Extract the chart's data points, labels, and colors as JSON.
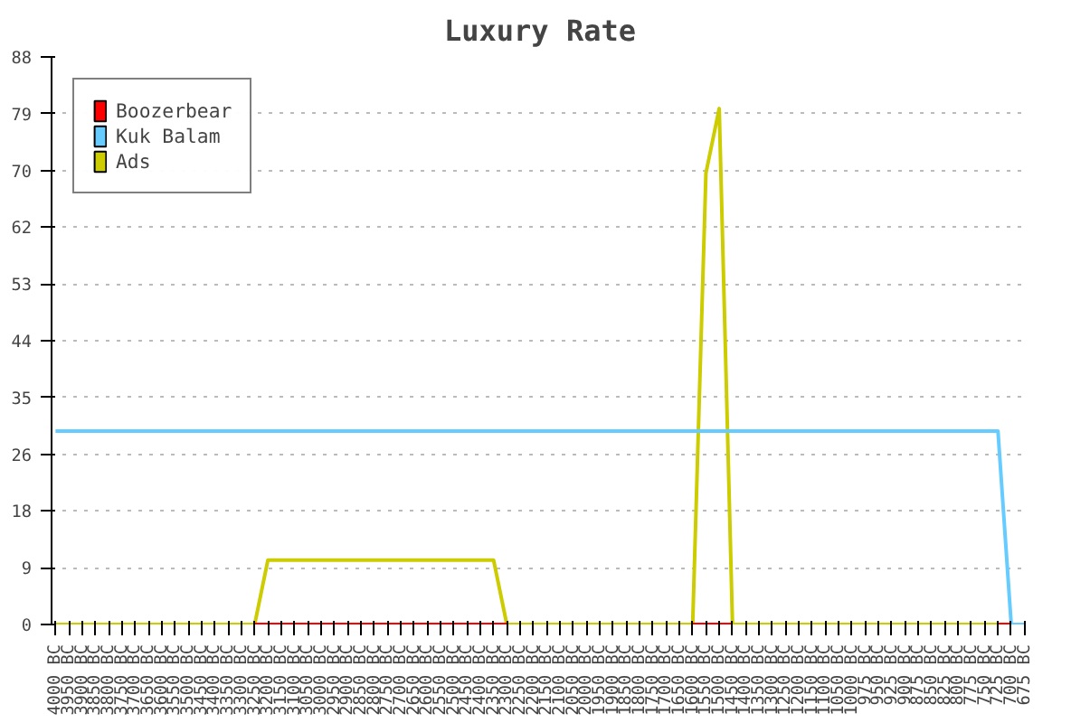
{
  "chart_data": {
    "type": "line",
    "title": "Luxury Rate",
    "categories": [
      "4000 BC",
      "3950 BC",
      "3900 BC",
      "3850 BC",
      "3800 BC",
      "3750 BC",
      "3700 BC",
      "3650 BC",
      "3600 BC",
      "3550 BC",
      "3500 BC",
      "3450 BC",
      "3400 BC",
      "3350 BC",
      "3300 BC",
      "3250 BC",
      "3200 BC",
      "3150 BC",
      "3100 BC",
      "3050 BC",
      "3000 BC",
      "2950 BC",
      "2900 BC",
      "2850 BC",
      "2800 BC",
      "2750 BC",
      "2700 BC",
      "2650 BC",
      "2600 BC",
      "2550 BC",
      "2500 BC",
      "2450 BC",
      "2400 BC",
      "2350 BC",
      "2300 BC",
      "2250 BC",
      "2200 BC",
      "2150 BC",
      "2100 BC",
      "2050 BC",
      "2000 BC",
      "1950 BC",
      "1900 BC",
      "1850 BC",
      "1800 BC",
      "1750 BC",
      "1700 BC",
      "1650 BC",
      "1600 BC",
      "1550 BC",
      "1500 BC",
      "1450 BC",
      "1400 BC",
      "1350 BC",
      "1300 BC",
      "1250 BC",
      "1200 BC",
      "1150 BC",
      "1100 BC",
      "1050 BC",
      "1000 BC",
      "975 BC",
      "950 BC",
      "925 BC",
      "900 BC",
      "875 BC",
      "850 BC",
      "825 BC",
      "800 BC",
      "775 BC",
      "750 BC",
      "725 BC",
      "700 BC",
      "675 BC"
    ],
    "series": [
      {
        "name": "Boozerbear",
        "color": "#ff0000",
        "values": [
          null,
          null,
          null,
          null,
          null,
          null,
          null,
          null,
          null,
          null,
          null,
          null,
          null,
          null,
          null,
          0,
          0,
          0,
          0,
          0,
          0,
          0,
          0,
          0,
          0,
          0,
          0,
          0,
          0,
          0,
          0,
          0,
          0,
          0,
          0,
          null,
          null,
          null,
          null,
          null,
          null,
          null,
          null,
          null,
          null,
          null,
          null,
          null,
          0,
          0,
          0,
          0,
          null,
          null,
          null,
          null,
          null,
          null,
          null,
          null,
          null,
          null,
          null,
          null,
          null,
          null,
          null,
          null,
          null,
          null,
          null,
          0,
          0,
          null
        ]
      },
      {
        "name": "Kuk Balam",
        "color": "#66ccff",
        "values": [
          30,
          30,
          30,
          30,
          30,
          30,
          30,
          30,
          30,
          30,
          30,
          30,
          30,
          30,
          30,
          30,
          30,
          30,
          30,
          30,
          30,
          30,
          30,
          30,
          30,
          30,
          30,
          30,
          30,
          30,
          30,
          30,
          30,
          30,
          30,
          30,
          30,
          30,
          30,
          30,
          30,
          30,
          30,
          30,
          30,
          30,
          30,
          30,
          30,
          30,
          30,
          30,
          30,
          30,
          30,
          30,
          30,
          30,
          30,
          30,
          30,
          30,
          30,
          30,
          30,
          30,
          30,
          30,
          30,
          30,
          30,
          30,
          0,
          0
        ]
      },
      {
        "name": "Ads",
        "color": "#cccc00",
        "values": [
          0,
          0,
          0,
          0,
          0,
          0,
          0,
          0,
          0,
          0,
          0,
          0,
          0,
          0,
          0,
          0,
          10,
          10,
          10,
          10,
          10,
          10,
          10,
          10,
          10,
          10,
          10,
          10,
          10,
          10,
          10,
          10,
          10,
          10,
          0,
          0,
          0,
          0,
          0,
          0,
          0,
          0,
          0,
          0,
          0,
          0,
          0,
          0,
          0,
          70,
          80,
          0,
          0,
          0,
          0,
          0,
          0,
          0,
          0,
          0,
          0,
          0,
          0,
          0,
          0,
          0,
          0,
          0,
          0,
          0,
          0,
          0,
          null,
          null
        ]
      }
    ],
    "ylim": [
      0,
      88
    ],
    "yticks": [
      0,
      {
        "value": 8.8,
        "label": "9"
      },
      {
        "value": 17.6,
        "label": "18"
      },
      {
        "value": 26.4,
        "label": "26"
      },
      {
        "value": 35.2,
        "label": "35"
      },
      44,
      {
        "value": 52.8,
        "label": "53"
      },
      {
        "value": 61.6,
        "label": "62"
      },
      {
        "value": 70.4,
        "label": "70"
      },
      {
        "value": 79.2,
        "label": "79"
      },
      88
    ],
    "grid": "y",
    "legend": "top left"
  }
}
